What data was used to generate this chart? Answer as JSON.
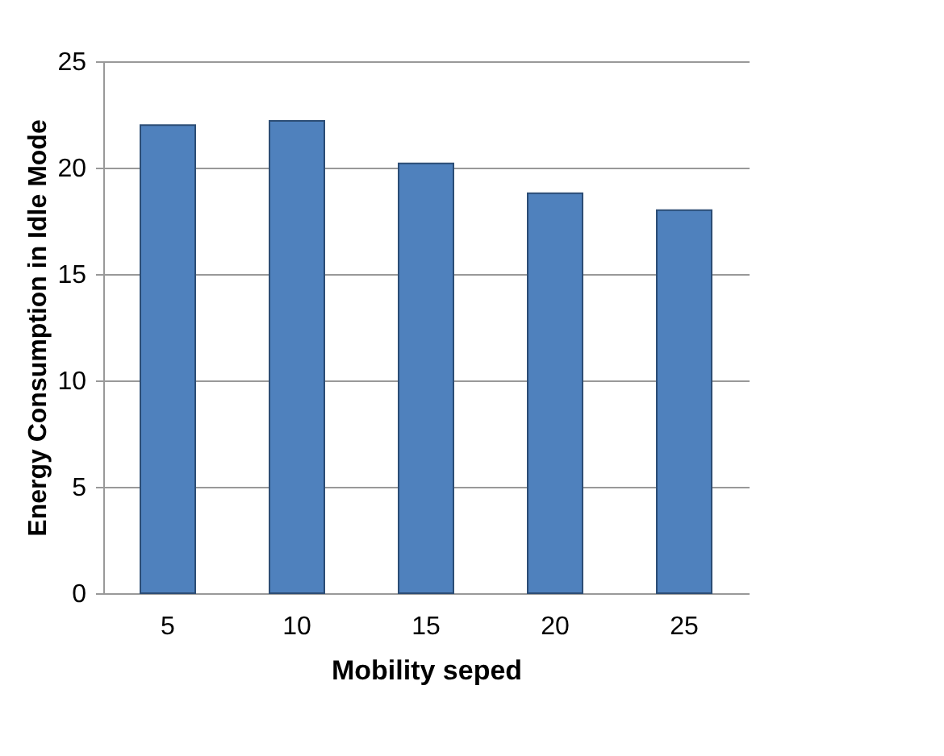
{
  "chart_data": {
    "type": "bar",
    "categories": [
      "5",
      "10",
      "15",
      "20",
      "25"
    ],
    "values": [
      22,
      22.2,
      20.2,
      18.8,
      18
    ],
    "color": "#4f81bd",
    "xlabel": "Mobility seped",
    "ylabel": "Energy Consumption in Idle Mode",
    "ylim": [
      0,
      25
    ],
    "yticks": [
      0,
      5,
      10,
      15,
      20,
      25
    ],
    "grid": "y"
  }
}
